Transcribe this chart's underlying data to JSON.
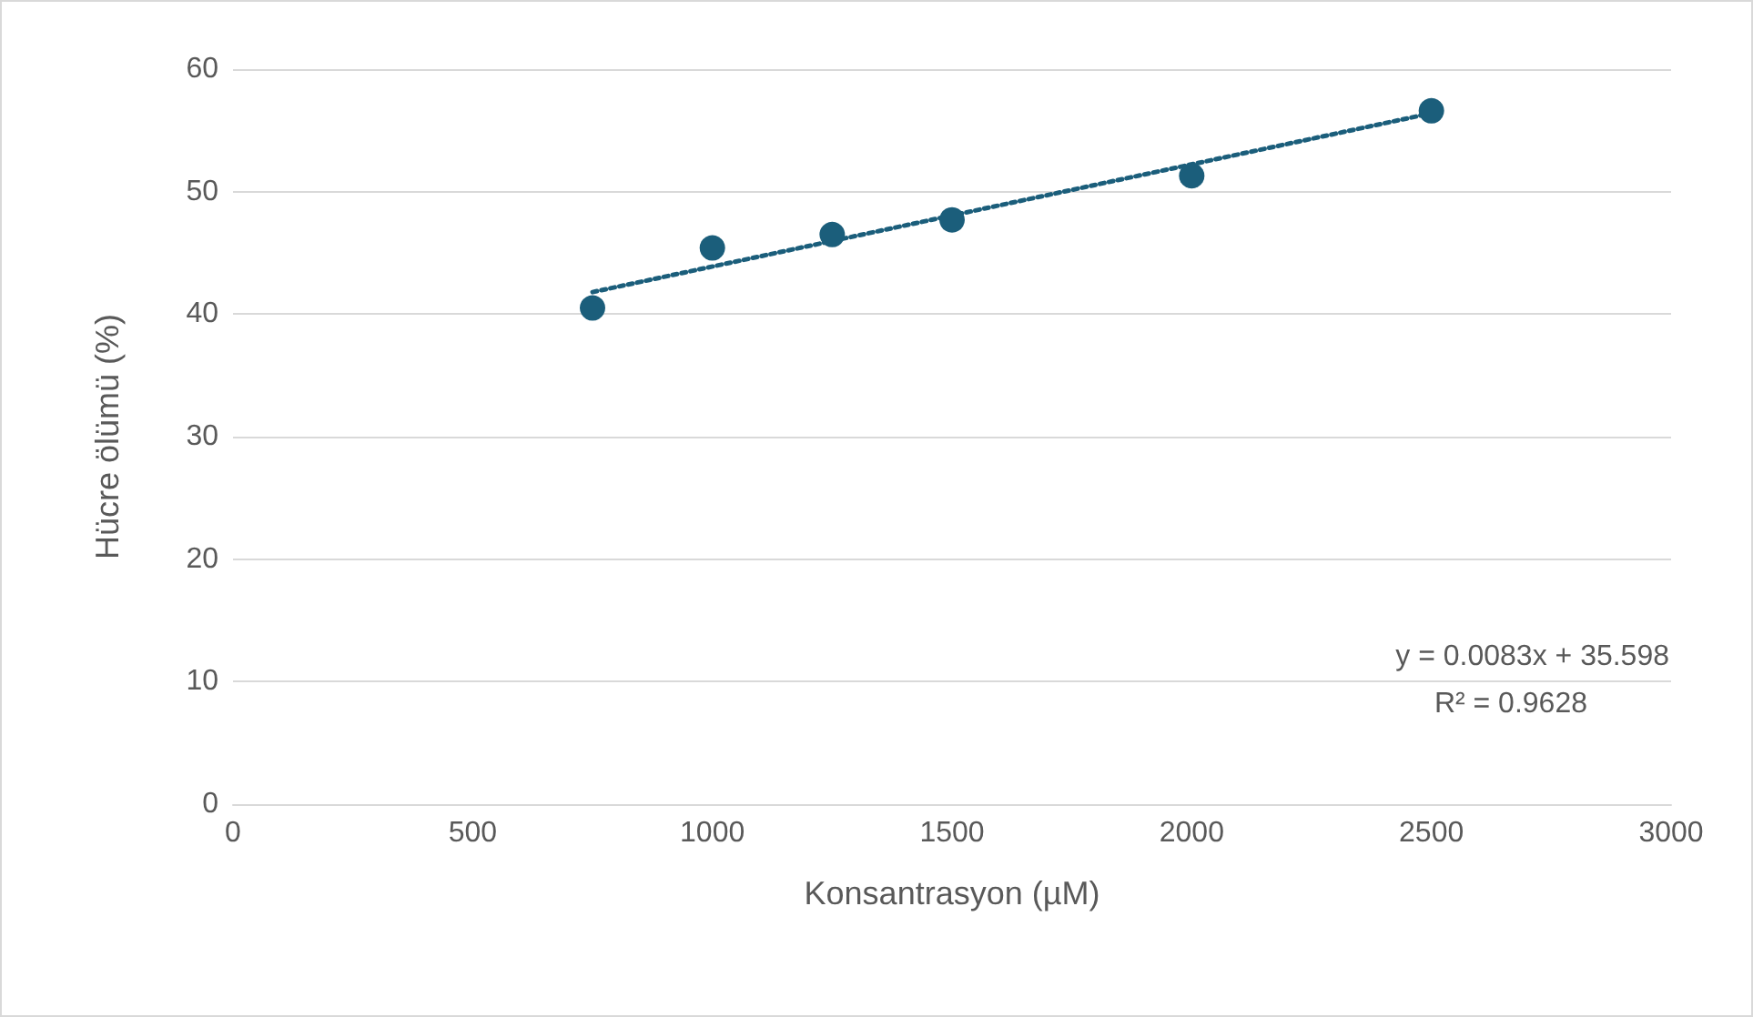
{
  "chart_data": {
    "type": "scatter",
    "xlabel": "Konsantrasyon (µM)",
    "ylabel": "Hücre ölümü (%)",
    "series": [
      {
        "color": "#1b5e7b",
        "x": [
          750,
          1000,
          1250,
          1500,
          2000,
          2500
        ],
        "values": [
          40.5,
          45.4,
          46.5,
          47.7,
          51.3,
          56.6
        ],
        "marker": "circle"
      },
      {
        "type": "line",
        "color": "#1b5e7b",
        "x": [
          750,
          2500
        ],
        "values": [
          41.8,
          56.4
        ],
        "line_style": "dotted",
        "marker": "none"
      }
    ],
    "xlim": [
      0,
      3000
    ],
    "xticks": [
      0,
      500,
      1000,
      1500,
      2000,
      2500,
      3000
    ],
    "ylim": [
      0,
      60
    ],
    "yticks": [
      0,
      10,
      20,
      30,
      40,
      50,
      60
    ],
    "grid": "y",
    "annotations": [
      "y = 0.0083x + 35.598",
      "R² = 0.9628"
    ]
  }
}
